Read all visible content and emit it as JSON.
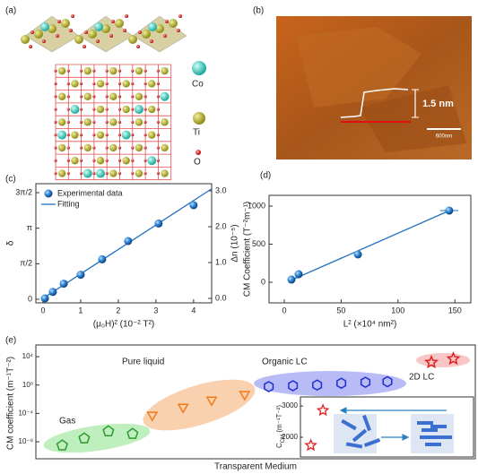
{
  "panel_a": {
    "panel_label": "(a)",
    "legend": [
      "Co",
      "Ti",
      "O"
    ]
  },
  "panel_b": {
    "panel_label": "(b)",
    "height_label": "1.5 nm",
    "scale_bar": "600nm"
  },
  "chart_data": [
    {
      "type": "scatter",
      "panel_label": "(c)",
      "xlabel": "(μ₀H)² (10⁻² T²)",
      "ylabel": "δ",
      "y2label": "Δn (10⁻⁵)",
      "xlim": [
        -0.19,
        4.48
      ],
      "xticks": [
        0,
        1,
        2,
        3,
        4
      ],
      "ylim": [
        -0.16,
        5.11
      ],
      "yticks": [
        0,
        {
          "value": 1.5708,
          "label": "π/2"
        },
        {
          "value": 3.1416,
          "label": "π"
        },
        {
          "value": 4.7124,
          "label": "3π/2"
        }
      ],
      "y2lim": [
        -0.125,
        3.2
      ],
      "y2ticks": [
        {
          "value": 0,
          "label": "0.0"
        },
        {
          "value": 1,
          "label": "1.0"
        },
        {
          "value": 2,
          "label": "2.0"
        },
        {
          "value": 3,
          "label": "3.0"
        }
      ],
      "legend": "upper left",
      "series": [
        {
          "name": "Experimental data",
          "color": "#1f6fc0",
          "axis": "y2",
          "x": [
            0.05,
            0.26,
            0.55,
            1.0,
            1.57,
            2.26,
            3.07,
            4.0
          ],
          "values": [
            0,
            0.18,
            0.41,
            0.66,
            1.09,
            1.6,
            2.09,
            2.6
          ]
        },
        {
          "name": "Fitting",
          "color": "#1f6fc0",
          "axis": "y2",
          "x": [
            0,
            4.47
          ],
          "values": [
            0,
            3.05
          ]
        }
      ]
    },
    {
      "type": "scatter",
      "panel_label": "(d)",
      "xlabel": "L² (×10⁴ nm²)",
      "ylabel": "CM Coefficient (T⁻²m⁻¹)",
      "xlim": [
        -13.4,
        164
      ],
      "xticks": [
        0,
        50,
        100,
        150
      ],
      "ylim": [
        -270,
        1141
      ],
      "yticks": [
        0,
        500,
        1000
      ],
      "series": [
        {
          "color": "#1f6fc0",
          "x": [
            6.3,
            12.6,
            64.7,
            145
          ],
          "values": [
            35,
            106,
            365,
            941
          ],
          "xerr": [
            0,
            0,
            0,
            8
          ]
        },
        {
          "color": "#1f6fc0",
          "x": [
            5,
            145
          ],
          "values": [
            20,
            940
          ]
        }
      ]
    },
    {
      "type": "scatter",
      "panel_label": "(e)",
      "xlabel": "Transparent Medium",
      "ylabel": "CM coefficient (m⁻¹T⁻²)",
      "log": true,
      "xlim": [
        0,
        20
      ],
      "ylim": [
        4e-11,
        450000
      ],
      "yticks": [
        {
          "value": 10000,
          "label": "10⁴"
        },
        {
          "value": 1,
          "label": "10⁰"
        },
        {
          "value": 0.0001,
          "label": "10⁻⁴"
        },
        {
          "value": 1e-08,
          "label": "10⁻⁸"
        }
      ],
      "series": [
        {
          "name": "Gas",
          "color": "#2e9a2e",
          "x": [
            1.2,
            2.2,
            3.3,
            4.4
          ],
          "values": [
            3e-09,
            3e-08,
            3e-07,
            1.3e-07
          ]
        },
        {
          "name": "Pure liquid",
          "color": "#f07a1a",
          "x": [
            5.3,
            6.7,
            8.0,
            9.5
          ],
          "values": [
            6e-05,
            0.0008,
            0.008,
            0.05
          ]
        },
        {
          "name": "Organic LC",
          "color": "#1e2fd0",
          "x": [
            10.6,
            11.7,
            12.8,
            13.9,
            15.0,
            16.0
          ],
          "values": [
            0.6,
            0.8,
            1,
            1.8,
            2.5,
            3
          ]
        },
        {
          "name": "2D LC",
          "color": "#e02020",
          "x": [
            18.0,
            19.0
          ],
          "values": [
            1600,
            5000
          ]
        }
      ],
      "inset": {
        "ylabel_main": "C",
        "ylabel_sub": "CM",
        "ylabel_unit": " (m⁻¹T⁻²)",
        "xlim": [
          0,
          10
        ],
        "ylim": [
          1370,
          3290
        ],
        "yticks": [
          2000,
          3000
        ],
        "series": [
          {
            "color": "#e02020",
            "x": [
              1.3,
              0.6
            ],
            "values": [
              2860,
              1740
            ]
          }
        ]
      }
    }
  ]
}
